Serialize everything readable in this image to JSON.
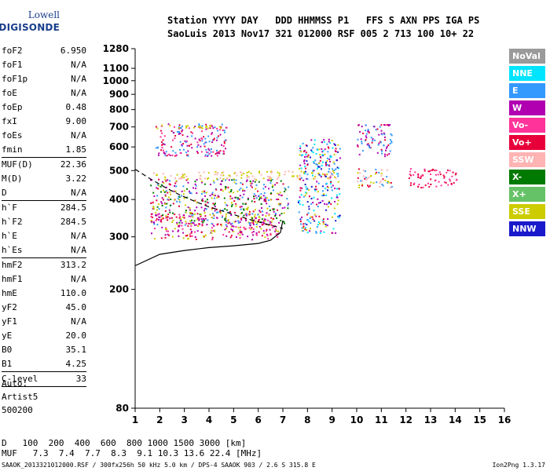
{
  "logo": {
    "line1": "Lowell",
    "line2": "DIGISONDE"
  },
  "header": {
    "line1": "Station YYYY DAY   DDD HHMMSS P1   FFS S AXN PPS IGA PS",
    "line2": "SaoLuis 2013 Nov17 321 012000 RSF 005 2 713 100 10+ 22"
  },
  "params": [
    {
      "k": "foF2",
      "v": "6.950"
    },
    {
      "k": "foF1",
      "v": "N/A"
    },
    {
      "k": "foF1p",
      "v": "N/A"
    },
    {
      "k": "foE",
      "v": "N/A"
    },
    {
      "k": "foEp",
      "v": "0.48"
    },
    {
      "k": "fxI",
      "v": "9.00"
    },
    {
      "k": "foEs",
      "v": "N/A"
    },
    {
      "k": "fmin",
      "v": "1.85"
    },
    {
      "k": "MUF(D)",
      "v": "22.36"
    },
    {
      "k": "M(D)",
      "v": "3.22"
    },
    {
      "k": "D",
      "v": "N/A"
    },
    {
      "k": "h`F",
      "v": "284.5"
    },
    {
      "k": "h`F2",
      "v": "284.5"
    },
    {
      "k": "h`E",
      "v": "N/A"
    },
    {
      "k": "h`Es",
      "v": "N/A"
    },
    {
      "k": "hmF2",
      "v": "313.2"
    },
    {
      "k": "hmF1",
      "v": "N/A"
    },
    {
      "k": "hmE",
      "v": "110.0"
    },
    {
      "k": "yF2",
      "v": "45.0"
    },
    {
      "k": "yF1",
      "v": "N/A"
    },
    {
      "k": "yE",
      "v": "20.0"
    },
    {
      "k": "B0",
      "v": "35.1"
    },
    {
      "k": "B1",
      "v": "4.25"
    },
    {
      "k": "C-level",
      "v": "33"
    }
  ],
  "auto": {
    "l1": "Auto:",
    "l2": "Artist5",
    "l3": "500200"
  },
  "legend": [
    {
      "label": "NoVal",
      "color": "#9a9a9a"
    },
    {
      "label": "NNE",
      "color": "#00e5ff"
    },
    {
      "label": "E",
      "color": "#3399ff"
    },
    {
      "label": "W",
      "color": "#b000b0"
    },
    {
      "label": "Vo-",
      "color": "#ff3399"
    },
    {
      "label": "Vo+",
      "color": "#e8003a"
    },
    {
      "label": "SSW",
      "color": "#ffb3b3"
    },
    {
      "label": "X-",
      "color": "#007a00"
    },
    {
      "label": "X+",
      "color": "#66c266"
    },
    {
      "label": "SSE",
      "color": "#cccc00"
    },
    {
      "label": "NNW",
      "color": "#1a1acc"
    }
  ],
  "dm": {
    "d_label": "D",
    "d_values": "100  200  400  600  800 1000 1500 3000 [km]",
    "muf_label": "MUF",
    "muf_values": "7.3  7.4  7.7  8.3  9.1 10.3 13.6 22.4 [MHz]"
  },
  "footer": {
    "left": "SAAOK_2013321012000.RSF / 300fx256h 50 kHz 5.0 km / DPS-4 SAAOK 903 / 2.6 S 315.8 E",
    "right": "Ion2Png 1.3.17"
  },
  "chart_data": {
    "type": "scatter",
    "title": "",
    "xlabel": "",
    "ylabel": "",
    "xlim": [
      1,
      16
    ],
    "ylim": [
      80,
      1280
    ],
    "y_scale": "log",
    "x_ticks": [
      1,
      2,
      3,
      4,
      5,
      6,
      7,
      8,
      9,
      10,
      11,
      12,
      13,
      14,
      15,
      16
    ],
    "y_ticks": [
      80,
      200,
      300,
      400,
      500,
      600,
      700,
      800,
      900,
      1000,
      1100,
      1280
    ],
    "clusters": [
      {
        "name": "O-trace low",
        "x": [
          1.6,
          6.8
        ],
        "y": [
          295,
          360
        ],
        "colors": [
          "#e8003a",
          "#b000b0",
          "#cccc00",
          "#ff3399"
        ]
      },
      {
        "name": "F-region",
        "x": [
          1.6,
          7.2
        ],
        "y": [
          330,
          470
        ],
        "colors": [
          "#b000b0",
          "#e8003a",
          "#007a00",
          "#3399ff",
          "#cccc00"
        ]
      },
      {
        "name": "2-hop band",
        "x": [
          1.8,
          4.7
        ],
        "y": [
          560,
          720
        ],
        "colors": [
          "#b000b0",
          "#e8003a",
          "#ff3399",
          "#3399ff"
        ]
      },
      {
        "name": "SSE 480",
        "x": [
          1.7,
          9.2
        ],
        "y": [
          470,
          500
        ],
        "colors": [
          "#cccc00",
          "#ffb3b3"
        ]
      },
      {
        "name": "SSE 700",
        "x": [
          1.8,
          4.6
        ],
        "y": [
          695,
          715
        ],
        "colors": [
          "#cccc00"
        ]
      },
      {
        "name": "spread F",
        "x": [
          7.6,
          9.3
        ],
        "y": [
          310,
          640
        ],
        "colors": [
          "#3399ff",
          "#b000b0",
          "#e8003a",
          "#cccc00",
          "#1a1acc",
          "#00e5ff"
        ]
      },
      {
        "name": "oblique 10-11",
        "x": [
          10.0,
          11.4
        ],
        "y": [
          560,
          720
        ],
        "colors": [
          "#b000b0",
          "#e8003a",
          "#3399ff"
        ]
      },
      {
        "name": "oblique 10-11 low",
        "x": [
          10.0,
          11.4
        ],
        "y": [
          440,
          510
        ],
        "colors": [
          "#cccc00",
          "#ffb3b3",
          "#e8003a",
          "#3399ff"
        ]
      },
      {
        "name": "far echoes",
        "x": [
          12.1,
          14.1
        ],
        "y": [
          440,
          510
        ],
        "colors": [
          "#ff3399",
          "#e8003a"
        ]
      }
    ],
    "profile_solid": {
      "x": [
        1,
        2,
        3,
        4,
        5,
        6,
        6.5,
        6.9,
        7.0
      ],
      "y": [
        240,
        262,
        270,
        276,
        280,
        285,
        292,
        310,
        340
      ]
    },
    "profile_dashed": {
      "x": [
        1.0,
        1.6,
        2.2,
        2.8,
        3.4,
        4.0,
        4.6,
        5.2,
        5.8,
        6.5,
        7.0
      ],
      "y": [
        505,
        470,
        440,
        415,
        395,
        378,
        365,
        352,
        340,
        328,
        320
      ]
    }
  }
}
